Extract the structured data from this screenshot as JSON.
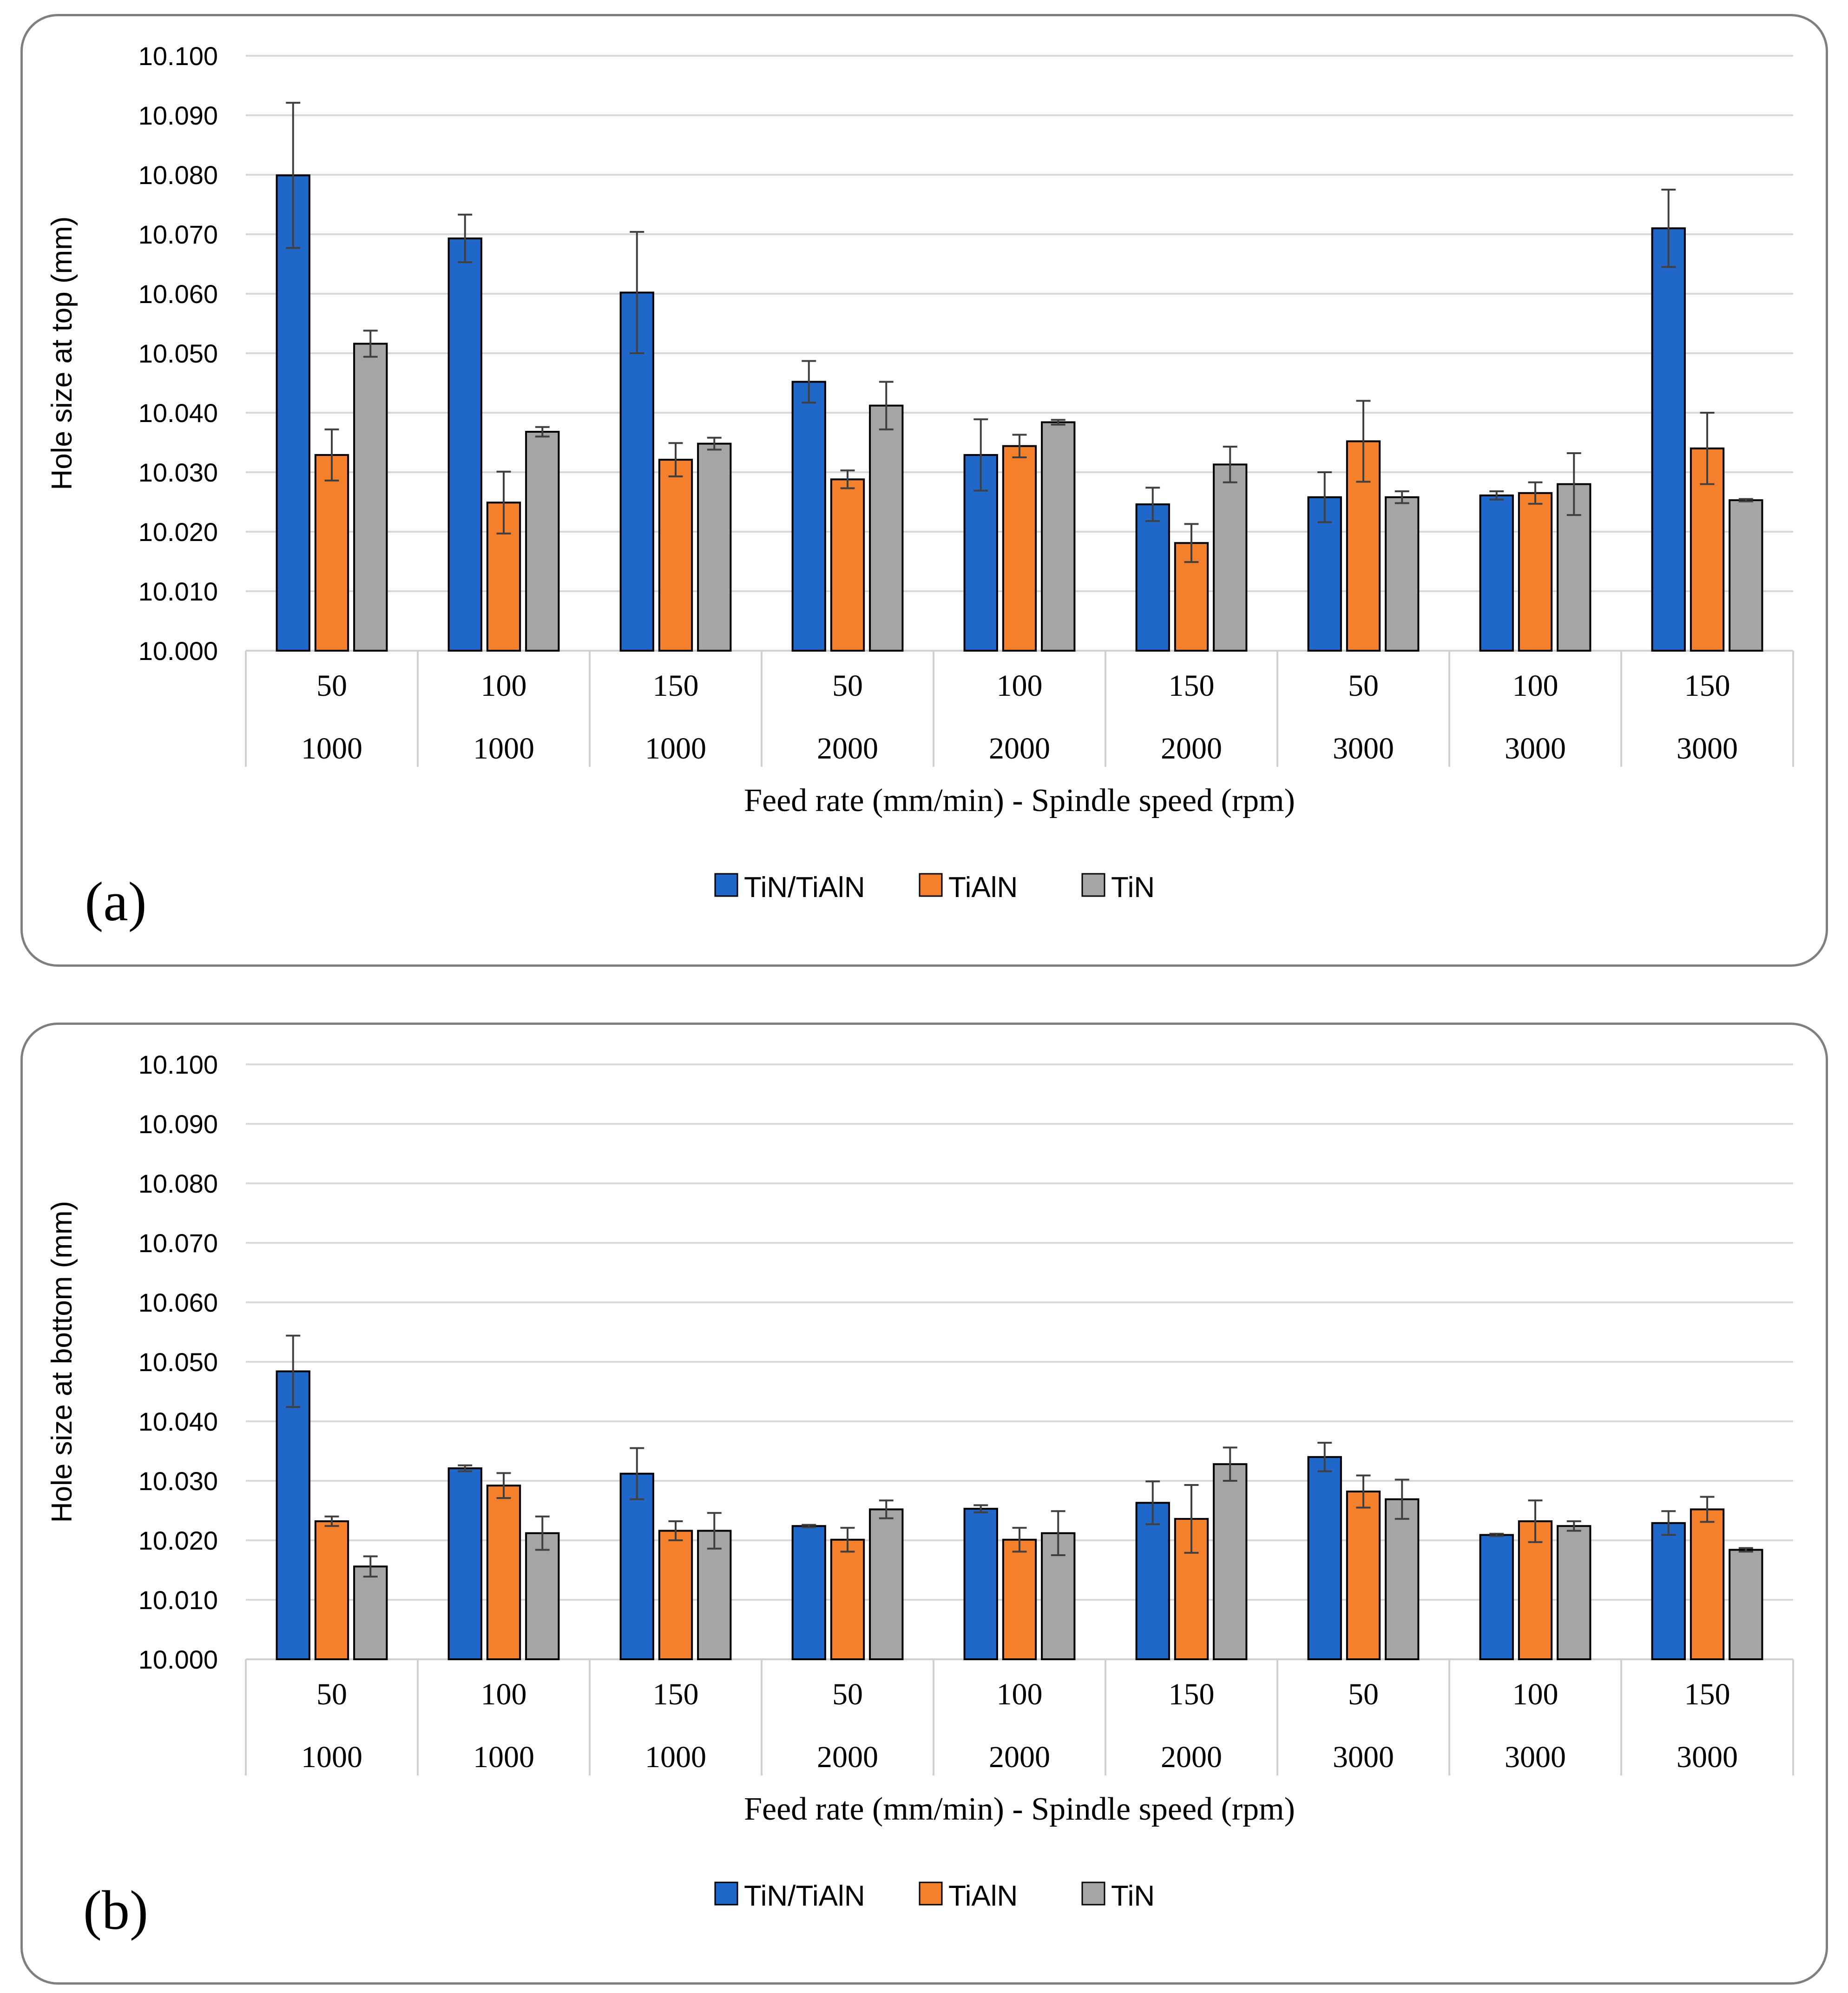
{
  "colors": {
    "TiN/TiAlN": "#1f67c8",
    "TiAlN": "#f4802b",
    "TiN": "#a5a5a5",
    "grid": "#d9d9d9",
    "border": "#7f7f7f"
  },
  "chart_data": [
    {
      "type": "bar",
      "panel_label": "(a)",
      "title": "",
      "ylabel": "Hole size at top (mm)",
      "xlabel": "Feed rate (mm/min) - Spindle speed (rpm)",
      "ylim": [
        10.0,
        10.1
      ],
      "yticks": [
        "10.000",
        "10.010",
        "10.020",
        "10.030",
        "10.040",
        "10.050",
        "10.060",
        "10.070",
        "10.080",
        "10.090",
        "10.100"
      ],
      "categories": [
        {
          "feed": "50",
          "speed": "1000"
        },
        {
          "feed": "100",
          "speed": "1000"
        },
        {
          "feed": "150",
          "speed": "1000"
        },
        {
          "feed": "50",
          "speed": "2000"
        },
        {
          "feed": "100",
          "speed": "2000"
        },
        {
          "feed": "150",
          "speed": "2000"
        },
        {
          "feed": "50",
          "speed": "3000"
        },
        {
          "feed": "100",
          "speed": "3000"
        },
        {
          "feed": "150",
          "speed": "3000"
        }
      ],
      "series": [
        {
          "name": "TiN/TiAlN",
          "values": [
            10.0799,
            10.0693,
            10.0602,
            10.0452,
            10.0329,
            10.0246,
            10.0258,
            10.0261,
            10.071
          ],
          "errors": [
            0.0122,
            0.004,
            0.0102,
            0.0035,
            0.006,
            0.0028,
            0.0042,
            0.0007,
            0.0065
          ]
        },
        {
          "name": "TiAlN",
          "values": [
            10.0329,
            10.0249,
            10.0321,
            10.0288,
            10.0344,
            10.0181,
            10.0352,
            10.0265,
            10.034
          ],
          "errors": [
            0.0043,
            0.0052,
            0.0028,
            0.0015,
            0.0019,
            0.0032,
            0.0068,
            0.0018,
            0.006
          ]
        },
        {
          "name": "TiN",
          "values": [
            10.0516,
            10.0368,
            10.0348,
            10.0412,
            10.0384,
            10.0313,
            10.0258,
            10.028,
            10.0253
          ],
          "errors": [
            0.0022,
            0.0008,
            0.001,
            0.004,
            0.0004,
            0.003,
            0.001,
            0.0052,
            0.0002
          ]
        }
      ],
      "legend": [
        "TiN/TiAlN",
        "TiAlN",
        "TiN"
      ],
      "legend_position": "bottom-center",
      "grid": true
    },
    {
      "type": "bar",
      "panel_label": "(b)",
      "title": "",
      "ylabel": "Hole size at bottom (mm)",
      "xlabel": "Feed rate (mm/min) - Spindle speed (rpm)",
      "ylim": [
        10.0,
        10.1
      ],
      "yticks": [
        "10.000",
        "10.010",
        "10.020",
        "10.030",
        "10.040",
        "10.050",
        "10.060",
        "10.070",
        "10.080",
        "10.090",
        "10.100"
      ],
      "categories": [
        {
          "feed": "50",
          "speed": "1000"
        },
        {
          "feed": "100",
          "speed": "1000"
        },
        {
          "feed": "150",
          "speed": "1000"
        },
        {
          "feed": "50",
          "speed": "2000"
        },
        {
          "feed": "100",
          "speed": "2000"
        },
        {
          "feed": "150",
          "speed": "2000"
        },
        {
          "feed": "50",
          "speed": "3000"
        },
        {
          "feed": "100",
          "speed": "3000"
        },
        {
          "feed": "150",
          "speed": "3000"
        }
      ],
      "series": [
        {
          "name": "TiN/TiAlN",
          "values": [
            10.0484,
            10.0321,
            10.0312,
            10.0224,
            10.0253,
            10.0263,
            10.034,
            10.0209,
            10.0229
          ],
          "errors": [
            0.006,
            0.0005,
            0.0043,
            0.0002,
            0.0006,
            0.0036,
            0.0024,
            0.0002,
            0.002
          ]
        },
        {
          "name": "TiAlN",
          "values": [
            10.0232,
            10.0292,
            10.0216,
            10.0201,
            10.0201,
            10.0236,
            10.0282,
            10.0232,
            10.0252
          ],
          "errors": [
            0.0008,
            0.0021,
            0.0016,
            0.002,
            0.002,
            0.0057,
            0.0027,
            0.0035,
            0.0021
          ]
        },
        {
          "name": "TiN",
          "values": [
            10.0156,
            10.0212,
            10.0216,
            10.0252,
            10.0212,
            10.0328,
            10.0269,
            10.0224,
            10.0184
          ],
          "errors": [
            0.0017,
            0.0028,
            0.003,
            0.0015,
            0.0037,
            0.0028,
            0.0033,
            0.0008,
            0.0003
          ]
        }
      ],
      "legend": [
        "TiN/TiAlN",
        "TiAlN",
        "TiN"
      ],
      "legend_position": "bottom-center",
      "grid": true
    }
  ]
}
